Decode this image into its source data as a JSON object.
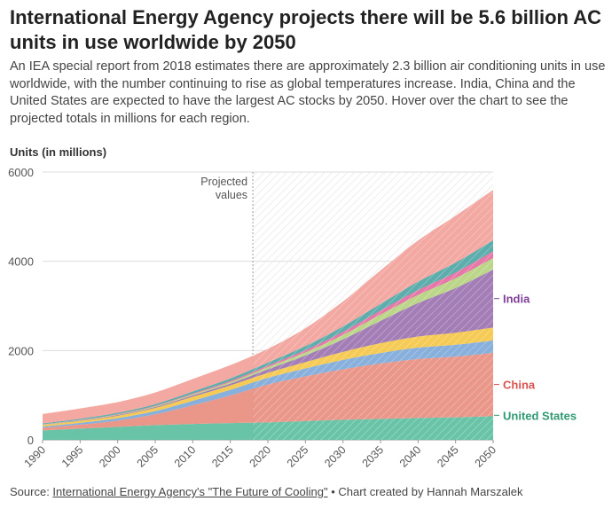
{
  "title": "International Energy Agency projects there will be 5.6 billion AC units in use worldwide by 2050",
  "subtitle": "An IEA special report from 2018 estimates there are approximately 2.3 billion air conditioning units in use worldwide, with the number continuing to rise as global temperatures increase. India, China and the United States are expected to have the largest AC stocks by 2050. Hover over the chart to see the projected totals in millions for each region.",
  "source": {
    "prefix": "Source: ",
    "link_text": "International Energy Agency's \"The Future of Cooling\"",
    "suffix": " • Chart created by Hannah Marszalek"
  },
  "chart_data": {
    "type": "area",
    "stacked": true,
    "ylabel": "Units (in millions)",
    "ylim": [
      0,
      6000
    ],
    "yticks": [
      0,
      2000,
      4000,
      6000
    ],
    "xlim": [
      1990,
      2050
    ],
    "xticks": [
      1990,
      1995,
      2000,
      2005,
      2010,
      2015,
      2020,
      2025,
      2030,
      2035,
      2040,
      2045,
      2050
    ],
    "x": [
      1990,
      1995,
      2000,
      2005,
      2010,
      2015,
      2020,
      2025,
      2030,
      2035,
      2040,
      2045,
      2050
    ],
    "projection": {
      "start": 2018,
      "label": [
        "Projected",
        "values"
      ]
    },
    "grid": true,
    "series": [
      {
        "name": "United States",
        "color": "#5cbf9f",
        "label_color": "#2e9a72",
        "labeled": true,
        "values": [
          210,
          250,
          290,
          330,
          355,
          375,
          390,
          420,
          450,
          470,
          490,
          505,
          530
        ]
      },
      {
        "name": "China",
        "color": "#e88e80",
        "label_color": "#d9534f",
        "labeled": true,
        "values": [
          60,
          90,
          140,
          240,
          420,
          620,
          850,
          1000,
          1130,
          1240,
          1320,
          1360,
          1420
        ]
      },
      {
        "color": "#7ea9d9",
        "values": [
          30,
          40,
          55,
          75,
          100,
          125,
          150,
          180,
          210,
          235,
          255,
          265,
          275
        ]
      },
      {
        "color": "#f5c747",
        "values": [
          35,
          45,
          55,
          70,
          90,
          100,
          110,
          140,
          180,
          220,
          250,
          270,
          290
        ]
      },
      {
        "name": "India",
        "color": "#9b72b0",
        "label_color": "#7f3f98",
        "labeled": true,
        "values": [
          5,
          10,
          15,
          20,
          30,
          40,
          80,
          150,
          280,
          500,
          750,
          1000,
          1300
        ]
      },
      {
        "color": "#b5d37e",
        "values": [
          5,
          8,
          12,
          18,
          25,
          35,
          50,
          70,
          100,
          140,
          180,
          220,
          260
        ]
      },
      {
        "color": "#e46ba0",
        "values": [
          3,
          5,
          8,
          12,
          18,
          25,
          35,
          50,
          70,
          90,
          110,
          130,
          150
        ]
      },
      {
        "color": "#4fa6a6",
        "values": [
          20,
          25,
          30,
          35,
          45,
          55,
          65,
          90,
          120,
          150,
          190,
          220,
          245
        ]
      },
      {
        "color": "#f2a19a",
        "values": [
          210,
          230,
          240,
          260,
          280,
          300,
          310,
          400,
          560,
          750,
          920,
          1050,
          1130
        ]
      }
    ]
  }
}
